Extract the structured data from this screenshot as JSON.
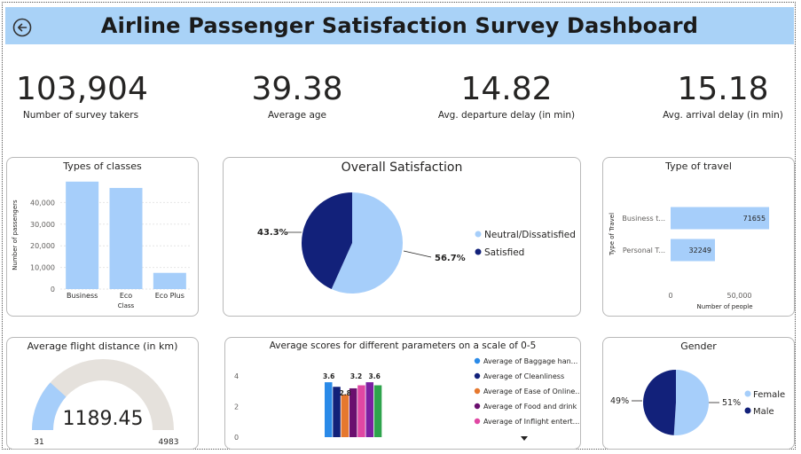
{
  "dashboard": {
    "title": "Airline Passenger Satisfaction Survey Dashboard"
  },
  "kpis": [
    {
      "value": "103,904",
      "label": "Number of survey takers"
    },
    {
      "value": "39.38",
      "label": "Average age"
    },
    {
      "value": "14.82",
      "label": "Avg. departure delay (in min)"
    },
    {
      "value": "15.18",
      "label": "Avg. arrival delay (in min)"
    }
  ],
  "cards": {
    "classes_title": "Types of classes",
    "satisfaction_title": "Overall Satisfaction",
    "travel_title": "Type of travel",
    "distance_title": "Average flight distance (in km)",
    "scores_title": "Average scores for different parameters on a scale of 0-5",
    "gender_title": "Gender"
  },
  "colors": {
    "header": "#a9d2f7",
    "light_blue": "#a6cefa",
    "navy": "#12217a",
    "gauge_track": "#e5e1dc"
  },
  "icons": {
    "back": "back-arrow-circle-icon",
    "more": "caret-down-icon"
  },
  "chart_data": [
    {
      "id": "classes",
      "type": "bar",
      "title": "Types of classes",
      "xlabel": "Class",
      "ylabel": "Number of passengers",
      "categories": [
        "Business",
        "Eco",
        "Eco Plus"
      ],
      "values": [
        49665,
        46745,
        7494
      ],
      "ylim": [
        0,
        50000
      ],
      "yticks": [
        0,
        10000,
        20000,
        30000,
        40000
      ],
      "ytick_labels": [
        "0",
        "10,000",
        "20,000",
        "30,000",
        "40,000"
      ],
      "color": "#a6cefa",
      "grid": true
    },
    {
      "id": "satisfaction",
      "type": "pie",
      "title": "Overall Satisfaction",
      "slices": [
        {
          "label": "Neutral/Dissatisfied",
          "value": 56.7,
          "display": "56.7%",
          "color": "#a6cefa"
        },
        {
          "label": "Satisfied",
          "value": 43.3,
          "display": "43.3%",
          "color": "#12217a"
        }
      ],
      "legend": "right"
    },
    {
      "id": "travel",
      "type": "bar",
      "orientation": "horizontal",
      "title": "Type of travel",
      "xlabel": "Number of people",
      "ylabel": "Type of Travel",
      "categories": [
        "Business t...",
        "Personal T..."
      ],
      "values": [
        71655,
        32249
      ],
      "value_labels": [
        "71655",
        "32249"
      ],
      "xlim": [
        0,
        80000
      ],
      "xticks": [
        0,
        50000
      ],
      "xtick_labels": [
        "0",
        "50,000"
      ],
      "color": "#a6cefa"
    },
    {
      "id": "distance",
      "type": "gauge",
      "title": "Average flight distance (in km)",
      "value": 1189.45,
      "display": "1189.45",
      "min": 31,
      "max": 4983,
      "min_label": "31",
      "max_label": "4983"
    },
    {
      "id": "scores",
      "type": "bar",
      "title": "Average scores for different parameters on a scale of 0-5",
      "yticks": [
        0,
        2,
        4
      ],
      "ylim": [
        0,
        5
      ],
      "series": [
        {
          "name": "Average of Baggage han...",
          "value": 3.6,
          "label": "3.6",
          "color": "#2a8ae8"
        },
        {
          "name": "Average of Cleanliness",
          "value": 3.3,
          "label": "",
          "color": "#12217a"
        },
        {
          "name": "Average of Ease of Online...",
          "value": 2.8,
          "label": "2.8",
          "color": "#e6782e"
        },
        {
          "name": "Average of Food and drink",
          "value": 3.2,
          "label": "3.2",
          "color": "#6a0f6e"
        },
        {
          "name": "Average of Inflight entert...",
          "value": 3.4,
          "label": "",
          "color": "#e047a3"
        },
        {
          "name": "",
          "value": 3.6,
          "label": "3.6",
          "color": "#7b1fa2"
        },
        {
          "name": "",
          "value": 3.4,
          "label": "",
          "color": "#2ea34c"
        }
      ],
      "legend": "right"
    },
    {
      "id": "gender",
      "type": "pie",
      "title": "Gender",
      "slices": [
        {
          "label": "Female",
          "value": 51,
          "display": "51%",
          "color": "#a6cefa"
        },
        {
          "label": "Male",
          "value": 49,
          "display": "49%",
          "color": "#12217a"
        }
      ],
      "legend": "right"
    }
  ]
}
